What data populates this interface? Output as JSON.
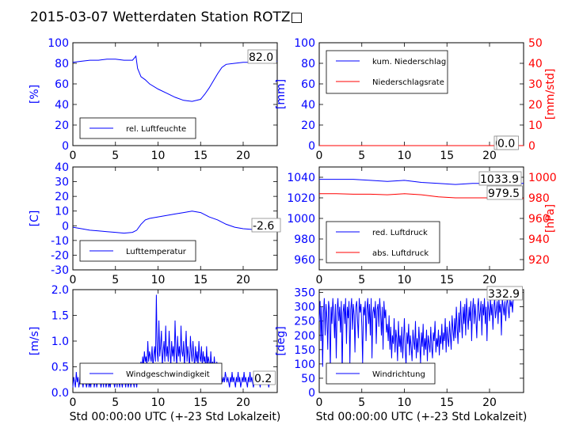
{
  "title": "2015-03-07 Wetterdaten Station ROTZ□",
  "colors": {
    "blue": "#0000ff",
    "red": "#ff0000",
    "lightblue": "#7f7fff",
    "black": "#000000"
  },
  "chart_data": [
    {
      "id": "humidity",
      "type": "line",
      "ylabel": "[%]",
      "xlim": [
        0,
        24
      ],
      "ylim": [
        0,
        100
      ],
      "xticks": [
        0,
        5,
        10,
        15,
        20
      ],
      "yticks": [
        0,
        20,
        40,
        60,
        80,
        100
      ],
      "current_value": "82.0",
      "legend": {
        "position": "lower-left",
        "entries": [
          "rel. Luftfeuchte"
        ]
      },
      "series": [
        {
          "name": "rel. Luftfeuchte",
          "color": "#0000ff",
          "x": [
            0,
            1,
            2,
            3,
            4,
            5,
            6,
            7,
            7.4,
            7.6,
            8,
            8.5,
            9,
            10,
            11,
            12,
            13,
            14,
            15,
            15.5,
            16,
            16.5,
            17,
            17.5,
            18,
            19,
            20,
            21,
            22,
            23,
            24
          ],
          "y": [
            81,
            82,
            83,
            83,
            84,
            84,
            83,
            83,
            87,
            75,
            67,
            64,
            60,
            55,
            51,
            47,
            44,
            43,
            45,
            50,
            56,
            63,
            70,
            76,
            79,
            80,
            81,
            81,
            82,
            82,
            82
          ]
        }
      ]
    },
    {
      "id": "precipitation",
      "type": "line",
      "ylabel": "[mm]",
      "ylabel2": "[mm/std]",
      "xlim": [
        0,
        24
      ],
      "ylim": [
        0,
        100
      ],
      "ylim2": [
        0,
        50
      ],
      "xticks": [
        0,
        5,
        10,
        15,
        20
      ],
      "yticks": [
        0,
        20,
        40,
        60,
        80,
        100
      ],
      "yticks2": [
        0,
        10,
        20,
        30,
        40,
        50
      ],
      "current_values": [
        "0.0",
        "0.0"
      ],
      "legend": {
        "position": "upper-left",
        "entries": [
          "kum. Niederschlag",
          "Niederschlagsrate"
        ]
      },
      "series": [
        {
          "name": "kum. Niederschlag",
          "color": "#0000ff",
          "x": [
            0,
            24
          ],
          "y": [
            0,
            0
          ]
        },
        {
          "name": "Niederschlagsrate",
          "color": "#ff0000",
          "x": [
            0,
            24
          ],
          "y": [
            0,
            0
          ]
        }
      ]
    },
    {
      "id": "temperature",
      "type": "line",
      "ylabel": "[C]",
      "xlim": [
        0,
        24
      ],
      "ylim": [
        -30,
        40
      ],
      "xticks": [
        0,
        5,
        10,
        15,
        20
      ],
      "yticks": [
        -30,
        -20,
        -10,
        0,
        10,
        20,
        30,
        40
      ],
      "current_value": "-2.6",
      "legend": {
        "position": "lower-left",
        "entries": [
          "Lufttemperatur"
        ]
      },
      "series": [
        {
          "name": "Lufttemperatur",
          "color": "#0000ff",
          "x": [
            0,
            1,
            2,
            3,
            4,
            5,
            6,
            7,
            7.5,
            8,
            8.5,
            9,
            10,
            11,
            12,
            13,
            14,
            15,
            16,
            17,
            18,
            19,
            20,
            21,
            22,
            23,
            24
          ],
          "y": [
            -1,
            -2,
            -3,
            -3.5,
            -4,
            -4.5,
            -5,
            -4.5,
            -3,
            1,
            4,
            5,
            6,
            7,
            8,
            9,
            10,
            9,
            6,
            4,
            1,
            -1,
            -2,
            -2.5,
            -2.6,
            -2.6,
            -2.6
          ]
        }
      ]
    },
    {
      "id": "pressure",
      "type": "line",
      "ylabel2": "[hPa]",
      "xlim": [
        0,
        24
      ],
      "ylim": [
        950,
        1050
      ],
      "ylim2": [
        910,
        1010
      ],
      "xticks": [
        0,
        5,
        10,
        15,
        20
      ],
      "yticks": [
        960,
        980,
        1000,
        1020,
        1040
      ],
      "yticks2": [
        920,
        940,
        960,
        980,
        1000
      ],
      "current_values": [
        "1033.9",
        "979.5"
      ],
      "legend": {
        "position": "lower-left",
        "entries": [
          "red. Luftdruck",
          "abs. Luftdruck"
        ]
      },
      "series": [
        {
          "name": "red. Luftdruck",
          "color": "#0000ff",
          "x": [
            0,
            2,
            4,
            6,
            8,
            10,
            12,
            14,
            16,
            18,
            20,
            22,
            24
          ],
          "y": [
            1038,
            1038,
            1038,
            1037,
            1036,
            1037,
            1035,
            1034,
            1033,
            1034,
            1034,
            1034,
            1034
          ]
        },
        {
          "name": "abs. Luftdruck",
          "color": "#ff0000",
          "x": [
            0,
            2,
            4,
            6,
            8,
            10,
            12,
            14,
            16,
            18,
            20,
            22,
            24
          ],
          "y": [
            984,
            984,
            983.5,
            983.5,
            983,
            984,
            983,
            981,
            980,
            980,
            980,
            979.5,
            979.5
          ]
        }
      ]
    },
    {
      "id": "wind_speed",
      "type": "line",
      "ylabel": "[m/s]",
      "xlabel": "Std 00:00:00 UTC (+-23 Std Lokalzeit)",
      "xlim": [
        0,
        24
      ],
      "ylim": [
        0,
        2.0
      ],
      "xticks": [
        0,
        5,
        10,
        15,
        20
      ],
      "yticks": [
        0.0,
        0.5,
        1.0,
        1.5,
        2.0
      ],
      "current_value": "0.2",
      "legend": {
        "position": "lower-left",
        "entries": [
          "Windgeschwindigkeit"
        ]
      },
      "series": [
        {
          "name": "Windgeschwindigkeit",
          "color": "#0000ff",
          "x_step": 0.1,
          "y": [
            0.1,
            0.3,
            0.2,
            0.1,
            0.4,
            0.2,
            0.3,
            0.1,
            0.2,
            0.5,
            0.3,
            0.2,
            0.1,
            0.3,
            0.4,
            0.2,
            0.1,
            0.2,
            0.3,
            0.1,
            0.2,
            0.1,
            0.3,
            0.2,
            0.4,
            0.1,
            0.2,
            0.3,
            0.1,
            0.2,
            0.3,
            0.5,
            0.2,
            0.1,
            0.2,
            0.3,
            0.1,
            0.4,
            0.2,
            0.1,
            0.2,
            0.3,
            0.1,
            0.2,
            0.1,
            0.3,
            0.2,
            0.4,
            0.2,
            0.1,
            0.2,
            0.3,
            0.1,
            0.5,
            0.2,
            0.1,
            0.3,
            0.2,
            0.1,
            0.2,
            0.4,
            0.2,
            0.1,
            0.3,
            0.2,
            0.1,
            0.2,
            0.3,
            0.1,
            0.2,
            0.3,
            0.2,
            0.1,
            0.4,
            0.2,
            0.1,
            0.3,
            0.2,
            0.3,
            0.5,
            0.6,
            0.4,
            0.7,
            0.5,
            0.8,
            0.6,
            0.7,
            0.5,
            1.0,
            0.6,
            0.8,
            0.7,
            0.6,
            0.9,
            0.5,
            0.7,
            0.9,
            0.6,
            1.9,
            0.8,
            0.6,
            1.4,
            0.7,
            0.9,
            1.2,
            0.5,
            0.8,
            1.0,
            0.6,
            1.3,
            0.7,
            0.9,
            0.6,
            1.2,
            0.8,
            0.5,
            1.0,
            0.7,
            0.9,
            0.6,
            1.4,
            0.8,
            0.5,
            1.1,
            0.7,
            0.9,
            0.6,
            1.3,
            0.8,
            0.7,
            1.0,
            0.5,
            0.8,
            1.2,
            0.6,
            0.9,
            0.7,
            0.5,
            1.1,
            0.8,
            0.6,
            1.0,
            0.7,
            0.5,
            0.9,
            0.6,
            0.8,
            0.5,
            1.0,
            0.7,
            0.6,
            0.9,
            0.5,
            0.8,
            0.6,
            0.7,
            0.4,
            0.9,
            0.5,
            0.7,
            0.6,
            0.4,
            0.8,
            0.5,
            0.6,
            0.4,
            0.7,
            0.5,
            0.3,
            0.6,
            0.4,
            0.5,
            0.3,
            0.2,
            0.4,
            0.3,
            0.2,
            0.3,
            0.2,
            0.4,
            0.3,
            0.2,
            0.3,
            0.2,
            0.1,
            0.3,
            0.2,
            0.4,
            0.2,
            0.3,
            0.2,
            0.1,
            0.3,
            0.2,
            0.4,
            0.2,
            0.3,
            0.1,
            0.2,
            0.3,
            0.2,
            0.4,
            0.2,
            0.3,
            0.2,
            0.1,
            0.3,
            0.2,
            0.4,
            0.2,
            0.3,
            0.2,
            0.1,
            0.2,
            0.3,
            0.2,
            0.4,
            0.2,
            0.3,
            0.2,
            0.1,
            0.3,
            0.2,
            0.2,
            0.3,
            0.2,
            0.4,
            0.2,
            0.3,
            0.2,
            0.1,
            0.2,
            0.2
          ]
        }
      ]
    },
    {
      "id": "wind_direction",
      "type": "line",
      "ylabel": "[deg]",
      "xlabel": "Std 00:00:00 UTC (+-23 Std Lokalzeit)",
      "xlim": [
        0,
        24
      ],
      "ylim": [
        0,
        360
      ],
      "xticks": [
        0,
        5,
        10,
        15,
        20
      ],
      "yticks": [
        0,
        50,
        100,
        150,
        200,
        250,
        300,
        350
      ],
      "current_value": "332.9",
      "legend": {
        "position": "lower-left",
        "entries": [
          "Windrichtung"
        ]
      },
      "series": [
        {
          "name": "Windrichtung",
          "color": "#0000ff",
          "x_step": 0.1,
          "y": [
            250,
            320,
            180,
            300,
            90,
            280,
            330,
            200,
            310,
            260,
            150,
            320,
            290,
            80,
            300,
            240,
            330,
            270,
            190,
            310,
            120,
            290,
            330,
            250,
            300,
            210,
            320,
            60,
            280,
            310,
            240,
            330,
            170,
            300,
            260,
            320,
            100,
            290,
            330,
            220,
            310,
            270,
            140,
            300,
            320,
            250,
            190,
            330,
            280,
            310,
            230,
            100,
            300,
            270,
            320,
            180,
            290,
            330,
            240,
            310,
            200,
            330,
            120,
            280,
            300,
            260,
            320,
            170,
            290,
            310,
            230,
            330,
            280,
            200,
            300,
            150,
            320,
            260,
            290,
            210,
            240,
            180,
            270,
            150,
            230,
            120,
            200,
            170,
            260,
            140,
            220,
            190,
            110,
            250,
            160,
            200,
            140,
            230,
            120,
            180,
            260,
            150,
            90,
            210,
            170,
            240,
            130,
            200,
            160,
            110,
            220,
            180,
            150,
            250,
            120,
            190,
            140,
            230,
            170,
            100,
            210,
            160,
            240,
            130,
            190,
            150,
            220,
            110,
            200,
            170,
            140,
            230,
            160,
            120,
            210,
            180,
            250,
            140,
            190,
            160,
            220,
            130,
            200,
            170,
            240,
            150,
            210,
            180,
            260,
            140,
            230,
            190,
            160,
            250,
            200,
            150,
            270,
            220,
            180,
            260,
            190,
            300,
            230,
            170,
            280,
            210,
            320,
            250,
            190,
            300,
            240,
            310,
            200,
            330,
            270,
            220,
            300,
            250,
            320,
            180,
            290,
            330,
            240,
            310,
            260,
            190,
            300,
            330,
            250,
            280,
            320,
            200,
            310,
            270,
            330,
            240,
            300,
            180,
            320,
            290,
            250,
            330,
            270,
            310,
            220,
            300,
            330,
            260,
            290,
            320,
            240,
            330,
            280,
            310,
            200,
            330,
            300,
            270,
            320,
            250,
            310,
            330,
            290,
            260,
            330,
            300,
            320,
            280,
            330
          ]
        }
      ]
    }
  ]
}
